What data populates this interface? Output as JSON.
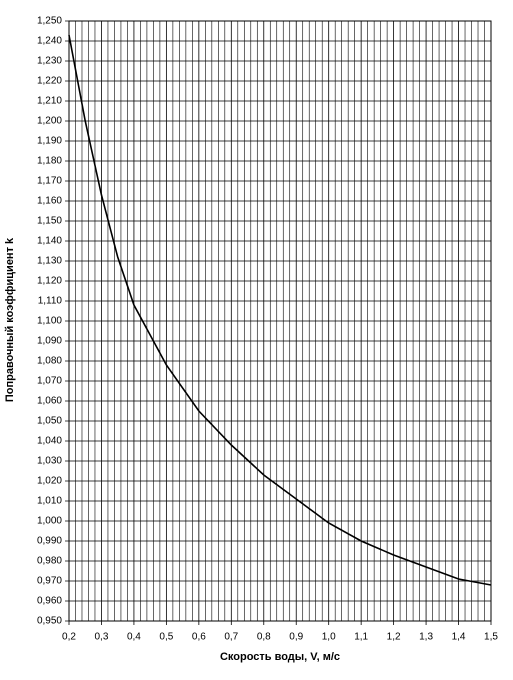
{
  "chart_data": {
    "type": "line",
    "xlabel": "Скорость воды, V, м/с",
    "ylabel": "Поправочный коэффициент k",
    "x": [
      0.2,
      0.25,
      0.3,
      0.35,
      0.4,
      0.5,
      0.6,
      0.7,
      0.8,
      0.9,
      1.0,
      1.1,
      1.2,
      1.3,
      1.4,
      1.5
    ],
    "series": [
      {
        "color": "#000000",
        "values": [
          1.243,
          1.2,
          1.163,
          1.132,
          1.108,
          1.078,
          1.055,
          1.038,
          1.023,
          1.011,
          0.999,
          0.99,
          0.983,
          0.977,
          0.971,
          0.968
        ]
      }
    ],
    "xlim": [
      0.2,
      1.5
    ],
    "ylim": [
      0.95,
      1.25
    ],
    "xticks": [
      {
        "value": 0.2,
        "label": "0,2"
      },
      {
        "value": 0.3,
        "label": "0,3"
      },
      {
        "value": 0.4,
        "label": "0,4"
      },
      {
        "value": 0.5,
        "label": "0,5"
      },
      {
        "value": 0.6,
        "label": "0,6"
      },
      {
        "value": 0.7,
        "label": "0,7"
      },
      {
        "value": 0.8,
        "label": "0,8"
      },
      {
        "value": 0.9,
        "label": "0,9"
      },
      {
        "value": 1.0,
        "label": "1,0"
      },
      {
        "value": 1.1,
        "label": "1,1"
      },
      {
        "value": 1.2,
        "label": "1,2"
      },
      {
        "value": 1.3,
        "label": "1,3"
      },
      {
        "value": 1.4,
        "label": "1,4"
      },
      {
        "value": 1.5,
        "label": "1,5"
      }
    ],
    "x_minor_ticks": [
      0.22,
      0.24,
      0.26,
      0.28,
      0.32,
      0.34,
      0.36,
      0.38,
      0.42,
      0.44,
      0.46,
      0.48,
      0.52,
      0.54,
      0.56,
      0.58,
      0.62,
      0.64,
      0.66,
      0.68,
      0.72,
      0.74,
      0.76,
      0.78,
      0.82,
      0.84,
      0.86,
      0.88,
      0.92,
      0.94,
      0.96,
      0.98,
      1.02,
      1.04,
      1.06,
      1.08,
      1.12,
      1.14,
      1.16,
      1.18,
      1.22,
      1.24,
      1.26,
      1.28,
      1.32,
      1.34,
      1.36,
      1.38,
      1.42,
      1.44,
      1.46,
      1.48
    ],
    "yticks": [
      {
        "value": 0.95,
        "label": "0,950"
      },
      {
        "value": 0.96,
        "label": "0,960"
      },
      {
        "value": 0.97,
        "label": "0,970"
      },
      {
        "value": 0.98,
        "label": "0,980"
      },
      {
        "value": 0.99,
        "label": "0,990"
      },
      {
        "value": 1.0,
        "label": "1,000"
      },
      {
        "value": 1.01,
        "label": "1,010"
      },
      {
        "value": 1.02,
        "label": "1,020"
      },
      {
        "value": 1.03,
        "label": "1,030"
      },
      {
        "value": 1.04,
        "label": "1,040"
      },
      {
        "value": 1.05,
        "label": "1,050"
      },
      {
        "value": 1.06,
        "label": "1,060"
      },
      {
        "value": 1.07,
        "label": "1,070"
      },
      {
        "value": 1.08,
        "label": "1,080"
      },
      {
        "value": 1.09,
        "label": "1,090"
      },
      {
        "value": 1.1,
        "label": "1,100"
      },
      {
        "value": 1.11,
        "label": "1,110"
      },
      {
        "value": 1.12,
        "label": "1,120"
      },
      {
        "value": 1.13,
        "label": "1,130"
      },
      {
        "value": 1.14,
        "label": "1,140"
      },
      {
        "value": 1.15,
        "label": "1,150"
      },
      {
        "value": 1.16,
        "label": "1,160"
      },
      {
        "value": 1.17,
        "label": "1,170"
      },
      {
        "value": 1.18,
        "label": "1,180"
      },
      {
        "value": 1.19,
        "label": "1,190"
      },
      {
        "value": 1.2,
        "label": "1,200"
      },
      {
        "value": 1.21,
        "label": "1,210"
      },
      {
        "value": 1.22,
        "label": "1,220"
      },
      {
        "value": 1.23,
        "label": "1,230"
      },
      {
        "value": 1.24,
        "label": "1,240"
      },
      {
        "value": 1.25,
        "label": "1,250"
      }
    ],
    "grid": true
  }
}
